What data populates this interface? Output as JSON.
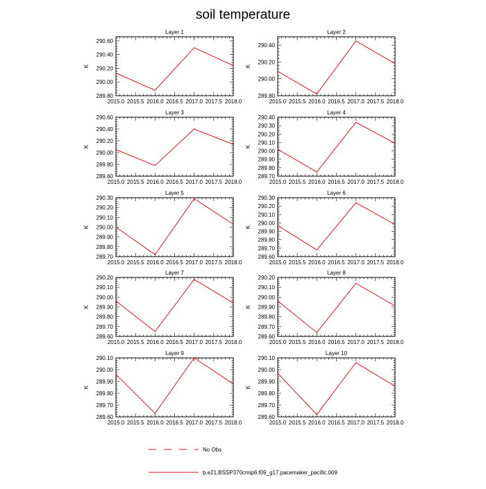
{
  "title": "soil temperature",
  "colors": {
    "series": "#e8121b",
    "axis": "#000000"
  },
  "legend": {
    "obs_label": "No Obs",
    "model_label": "b.e21.BSSP370cmip6.f09_g17.pacemaker_pacific.009"
  },
  "chart_data": [
    {
      "type": "line",
      "title": "Layer 1",
      "ylabel": "K",
      "x": [
        2015.0,
        2016.0,
        2017.0,
        2018.0
      ],
      "values": [
        290.13,
        289.88,
        290.5,
        290.24
      ],
      "xlim": [
        2015.0,
        2018.0
      ],
      "ylim": [
        289.8,
        290.66
      ],
      "xticks": [
        "2015.0",
        "2015.5",
        "2016.0",
        "2016.5",
        "2017.0",
        "2017.5",
        "2018.0"
      ],
      "yticks": [
        289.8,
        290.0,
        290.2,
        290.4,
        290.6
      ],
      "ytick_labels": [
        "289.80",
        "290.00",
        "290.20",
        "290.40",
        "290.60"
      ]
    },
    {
      "type": "line",
      "title": "Layer 2",
      "ylabel": "K",
      "x": [
        2015.0,
        2016.0,
        2017.0,
        2018.0
      ],
      "values": [
        290.09,
        289.82,
        290.45,
        290.18
      ],
      "xlim": [
        2015.0,
        2018.0
      ],
      "ylim": [
        289.8,
        290.5
      ],
      "xticks": [
        "2015.0",
        "2015.5",
        "2016.0",
        "2016.5",
        "2017.0",
        "2017.5",
        "2018.0"
      ],
      "yticks": [
        289.8,
        290.0,
        290.2,
        290.4
      ],
      "ytick_labels": [
        "289.80",
        "290.00",
        "290.20",
        "290.40"
      ]
    },
    {
      "type": "line",
      "title": "Layer 3",
      "ylabel": "K",
      "x": [
        2015.0,
        2016.0,
        2017.0,
        2018.0
      ],
      "values": [
        290.05,
        289.78,
        290.4,
        290.14
      ],
      "xlim": [
        2015.0,
        2018.0
      ],
      "ylim": [
        289.6,
        290.6
      ],
      "xticks": [
        "2015.0",
        "2015.5",
        "2016.0",
        "2016.5",
        "2017.0",
        "2017.5",
        "2018.0"
      ],
      "yticks": [
        289.6,
        289.8,
        290.0,
        290.2,
        290.4,
        290.6
      ],
      "ytick_labels": [
        "289.60",
        "289.80",
        "290.00",
        "290.20",
        "290.40",
        "290.60"
      ]
    },
    {
      "type": "line",
      "title": "Layer 4",
      "ylabel": "K",
      "x": [
        2015.0,
        2016.0,
        2017.0,
        2018.0
      ],
      "values": [
        290.02,
        289.75,
        290.34,
        290.09
      ],
      "xlim": [
        2015.0,
        2018.0
      ],
      "ylim": [
        289.7,
        290.4
      ],
      "xticks": [
        "2015.0",
        "2015.5",
        "2016.0",
        "2016.5",
        "2017.0",
        "2017.5",
        "2018.0"
      ],
      "yticks": [
        289.7,
        289.8,
        289.9,
        290.0,
        290.1,
        290.2,
        290.3,
        290.4
      ],
      "ytick_labels": [
        "289.70",
        "289.80",
        "289.90",
        "290.00",
        "290.10",
        "290.20",
        "290.30",
        "290.40"
      ]
    },
    {
      "type": "line",
      "title": "Layer 5",
      "ylabel": "K",
      "x": [
        2015.0,
        2016.0,
        2017.0,
        2018.0
      ],
      "values": [
        290.0,
        289.72,
        290.29,
        290.03
      ],
      "xlim": [
        2015.0,
        2018.0
      ],
      "ylim": [
        289.7,
        290.3
      ],
      "xticks": [
        "2015.0",
        "2015.5",
        "2016.0",
        "2016.5",
        "2017.0",
        "2017.5",
        "2018.0"
      ],
      "yticks": [
        289.7,
        289.8,
        289.9,
        290.0,
        290.1,
        290.2,
        290.3
      ],
      "ytick_labels": [
        "289.70",
        "289.80",
        "289.90",
        "290.00",
        "290.10",
        "290.20",
        "290.30"
      ]
    },
    {
      "type": "line",
      "title": "Layer 6",
      "ylabel": "K",
      "x": [
        2015.0,
        2016.0,
        2017.0,
        2018.0
      ],
      "values": [
        289.97,
        289.68,
        290.24,
        289.98
      ],
      "xlim": [
        2015.0,
        2018.0
      ],
      "ylim": [
        289.6,
        290.3
      ],
      "xticks": [
        "2015.0",
        "2015.5",
        "2016.0",
        "2016.5",
        "2017.0",
        "2017.5",
        "2018.0"
      ],
      "yticks": [
        289.6,
        289.7,
        289.8,
        289.9,
        290.0,
        290.1,
        290.2,
        290.3
      ],
      "ytick_labels": [
        "289.60",
        "289.70",
        "289.80",
        "289.90",
        "290.00",
        "290.10",
        "290.20",
        "290.30"
      ]
    },
    {
      "type": "line",
      "title": "Layer 7",
      "ylabel": "K",
      "x": [
        2015.0,
        2016.0,
        2017.0,
        2018.0
      ],
      "values": [
        289.96,
        289.65,
        290.18,
        289.94
      ],
      "xlim": [
        2015.0,
        2018.0
      ],
      "ylim": [
        289.6,
        290.2
      ],
      "xticks": [
        "2015.0",
        "2015.5",
        "2016.0",
        "2016.5",
        "2017.0",
        "2017.5",
        "2018.0"
      ],
      "yticks": [
        289.6,
        289.7,
        289.8,
        289.9,
        290.0,
        290.1,
        290.2
      ],
      "ytick_labels": [
        "289.60",
        "289.70",
        "289.80",
        "289.90",
        "290.00",
        "290.10",
        "290.20"
      ]
    },
    {
      "type": "line",
      "title": "Layer 8",
      "ylabel": "K",
      "x": [
        2015.0,
        2016.0,
        2017.0,
        2018.0
      ],
      "values": [
        289.96,
        289.64,
        290.14,
        289.91
      ],
      "xlim": [
        2015.0,
        2018.0
      ],
      "ylim": [
        289.6,
        290.2
      ],
      "xticks": [
        "2015.0",
        "2015.5",
        "2016.0",
        "2016.5",
        "2017.0",
        "2017.5",
        "2018.0"
      ],
      "yticks": [
        289.6,
        289.7,
        289.8,
        289.9,
        290.0,
        290.1,
        290.2
      ],
      "ytick_labels": [
        "289.60",
        "289.70",
        "289.80",
        "289.90",
        "290.00",
        "290.10",
        "290.20"
      ]
    },
    {
      "type": "line",
      "title": "Layer 9",
      "ylabel": "K",
      "x": [
        2015.0,
        2016.0,
        2017.0,
        2018.0
      ],
      "values": [
        289.96,
        289.63,
        290.1,
        289.88
      ],
      "xlim": [
        2015.0,
        2018.0
      ],
      "ylim": [
        289.6,
        290.1
      ],
      "xticks": [
        "2015.0",
        "2015.5",
        "2016.0",
        "2016.5",
        "2017.0",
        "2017.5",
        "2018.0"
      ],
      "yticks": [
        289.6,
        289.7,
        289.8,
        289.9,
        290.0,
        290.1
      ],
      "ytick_labels": [
        "289.60",
        "289.70",
        "289.80",
        "289.90",
        "290.00",
        "290.10"
      ]
    },
    {
      "type": "line",
      "title": "Layer 10",
      "ylabel": "K",
      "x": [
        2015.0,
        2016.0,
        2017.0,
        2018.0
      ],
      "values": [
        289.97,
        289.62,
        290.06,
        289.86
      ],
      "xlim": [
        2015.0,
        2018.0
      ],
      "ylim": [
        289.6,
        290.1
      ],
      "xticks": [
        "2015.0",
        "2015.5",
        "2016.0",
        "2016.5",
        "2017.0",
        "2017.5",
        "2018.0"
      ],
      "yticks": [
        289.6,
        289.7,
        289.8,
        289.9,
        290.0,
        290.1
      ],
      "ytick_labels": [
        "289.60",
        "289.70",
        "289.80",
        "289.90",
        "290.00",
        "290.10"
      ]
    }
  ]
}
